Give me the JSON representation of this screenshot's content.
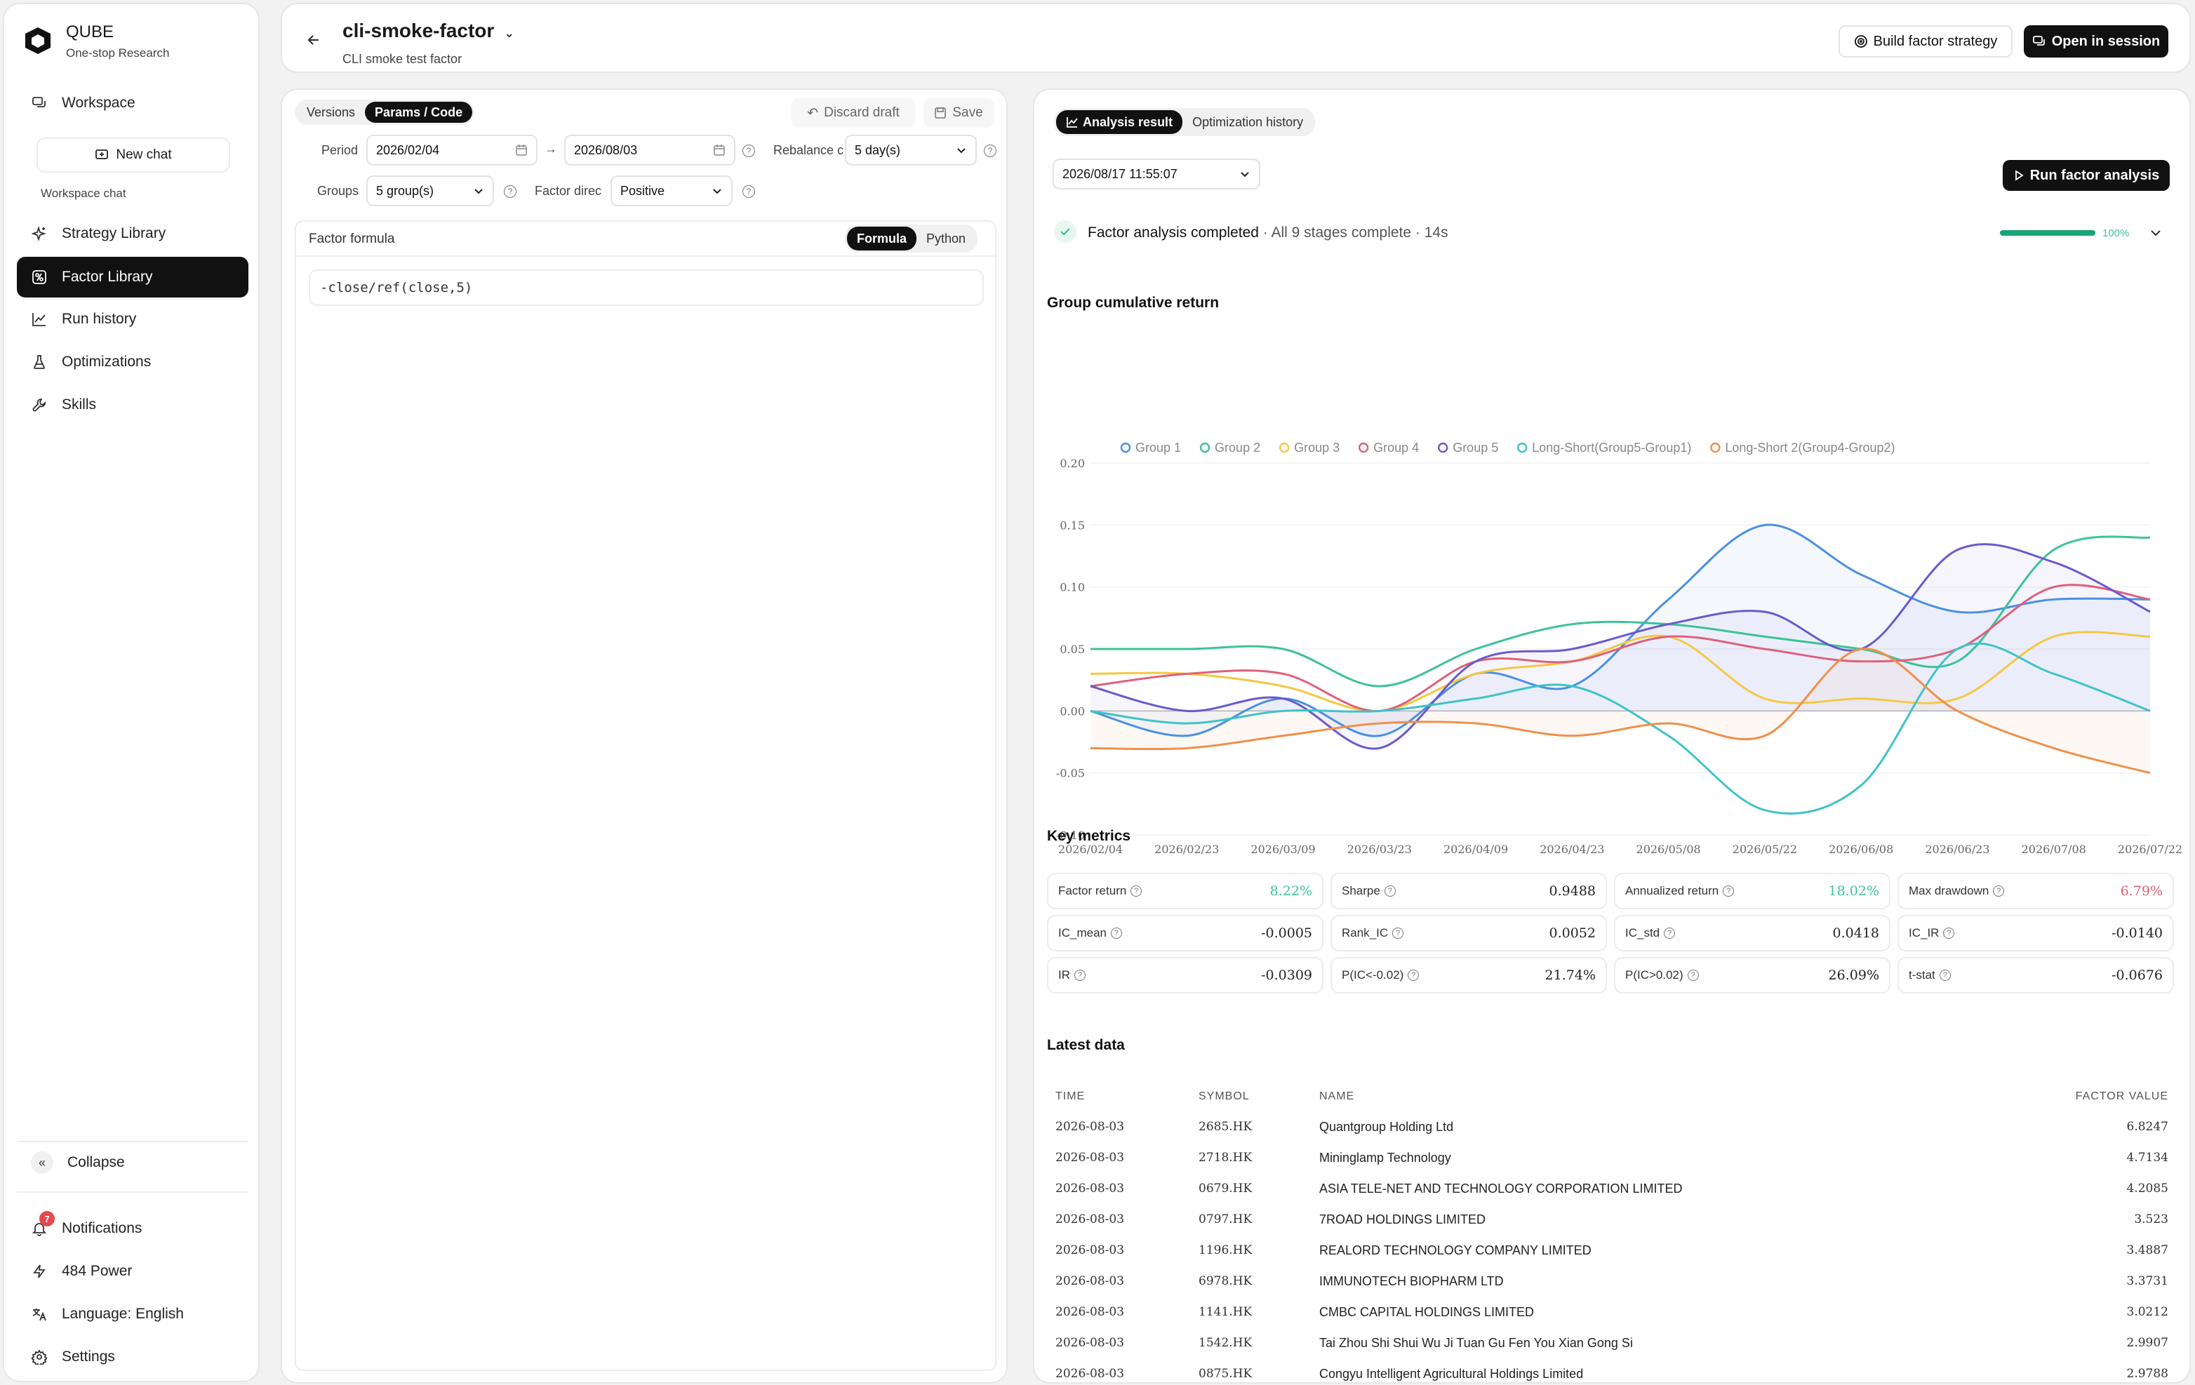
{
  "brand": {
    "name": "QUBE",
    "subtitle": "One-stop Research"
  },
  "sidebar": {
    "workspace": "Workspace",
    "new_chat": "New chat",
    "workspace_chat": "Workspace chat",
    "items": [
      {
        "label": "Strategy Library",
        "icon": "sparkle-icon"
      },
      {
        "label": "Factor Library",
        "icon": "factor-icon",
        "active": true
      },
      {
        "label": "Run history",
        "icon": "chart-line-icon"
      },
      {
        "label": "Optimizations",
        "icon": "flask-icon"
      },
      {
        "label": "Skills",
        "icon": "wrench-icon"
      }
    ],
    "collapse": "Collapse",
    "notifications": "Notifications",
    "notifications_count": "7",
    "power": "484 Power",
    "language": "Language: English",
    "settings": "Settings"
  },
  "header": {
    "title": "cli-smoke-factor",
    "subtitle": "CLI smoke test factor",
    "build_strategy": "Build factor strategy",
    "open_session": "Open in session"
  },
  "editor": {
    "tabs": [
      "Versions",
      "Params / Code"
    ],
    "active_tab": "Params / Code",
    "discard": "Discard draft",
    "save": "Save",
    "period_label": "Period",
    "period_start": "2026/02/04",
    "arrow": "→",
    "period_end": "2026/08/03",
    "rebalance_label": "Rebalance c",
    "rebalance_value": "5 day(s)",
    "groups_label": "Groups",
    "groups_value": "5 group(s)",
    "direction_label": "Factor direc",
    "direction_value": "Positive",
    "formula_title": "Factor formula",
    "formula_modes": [
      "Formula",
      "Python"
    ],
    "formula": "-close/ref(close,5)"
  },
  "analysis": {
    "tabs": [
      "Analysis result",
      "Optimization history"
    ],
    "run_time": "2026/08/17 11:55:07",
    "run_button": "Run factor analysis",
    "status_title": "Factor analysis completed",
    "status_detail": " · All 9 stages complete · 14s",
    "progress": 100,
    "progress_label": "100%",
    "chart_section": "Group cumulative return",
    "metrics_section": "Key metrics",
    "metrics": [
      {
        "name": "Factor return",
        "value": "8.22%",
        "color": "#3cc29a"
      },
      {
        "name": "Sharpe",
        "value": "0.9488",
        "color": "#222222"
      },
      {
        "name": "Annualized return",
        "value": "18.02%",
        "color": "#3cc29a"
      },
      {
        "name": "Max drawdown",
        "value": "6.79%",
        "color": "#e0607a"
      },
      {
        "name": "IC_mean",
        "value": "-0.0005",
        "color": "#222222"
      },
      {
        "name": "Rank_IC",
        "value": "0.0052",
        "color": "#222222"
      },
      {
        "name": "IC_std",
        "value": "0.0418",
        "color": "#222222"
      },
      {
        "name": "IC_IR",
        "value": "-0.0140",
        "color": "#222222"
      },
      {
        "name": "IR",
        "value": "-0.0309",
        "color": "#222222"
      },
      {
        "name": "P(IC<-0.02)",
        "value": "21.74%",
        "color": "#222222"
      },
      {
        "name": "P(IC>0.02)",
        "value": "26.09%",
        "color": "#222222"
      },
      {
        "name": "t-stat",
        "value": "-0.0676",
        "color": "#222222"
      }
    ],
    "latest_section": "Latest data",
    "table": {
      "headers": [
        "TIME",
        "SYMBOL",
        "NAME",
        "FACTOR VALUE"
      ],
      "rows": [
        [
          "2026-08-03",
          "2685.HK",
          "Quantgroup Holding Ltd",
          "6.8247"
        ],
        [
          "2026-08-03",
          "2718.HK",
          "Mininglamp Technology",
          "4.7134"
        ],
        [
          "2026-08-03",
          "0679.HK",
          "ASIA TELE-NET AND TECHNOLOGY CORPORATION LIMITED",
          "4.2085"
        ],
        [
          "2026-08-03",
          "0797.HK",
          "7ROAD HOLDINGS LIMITED",
          "3.523"
        ],
        [
          "2026-08-03",
          "1196.HK",
          "REALORD TECHNOLOGY COMPANY LIMITED",
          "3.4887"
        ],
        [
          "2026-08-03",
          "6978.HK",
          "IMMUNOTECH BIOPHARM LTD",
          "3.3731"
        ],
        [
          "2026-08-03",
          "1141.HK",
          "CMBC CAPITAL HOLDINGS LIMITED",
          "3.0212"
        ],
        [
          "2026-08-03",
          "1542.HK",
          "Tai Zhou Shi Shui Wu Ji Tuan Gu Fen You Xian Gong Si",
          "2.9907"
        ],
        [
          "2026-08-03",
          "0875.HK",
          "Congyu Intelligent Agricultural Holdings Limited",
          "2.9788"
        ]
      ]
    }
  },
  "chart_data": {
    "type": "line",
    "title": "",
    "xlabel": "",
    "ylabel": "",
    "x_ticks": [
      "2026/02/04",
      "2026/02/23",
      "2026/03/09",
      "2026/03/23",
      "2026/04/09",
      "2026/04/23",
      "2026/05/08",
      "2026/05/22",
      "2026/06/08",
      "2026/06/23",
      "2026/07/08",
      "2026/07/22"
    ],
    "y_ticks": [
      "0.20",
      "0.15",
      "0.10",
      "0.05",
      "0.00",
      "-0.05",
      "-0.10"
    ],
    "ylim": [
      -0.1,
      0.2
    ],
    "grid": true,
    "legend": "top",
    "series": [
      {
        "name": "Group 1",
        "color": "#4a90e2",
        "values": [
          0.0,
          -0.02,
          0.01,
          -0.02,
          0.03,
          0.02,
          0.09,
          0.15,
          0.11,
          0.08,
          0.09,
          0.09
        ]
      },
      {
        "name": "Group 2",
        "color": "#3cc29a",
        "values": [
          0.05,
          0.05,
          0.05,
          0.02,
          0.05,
          0.07,
          0.07,
          0.06,
          0.05,
          0.04,
          0.13,
          0.14
        ]
      },
      {
        "name": "Group 3",
        "color": "#f5c842",
        "values": [
          0.03,
          0.03,
          0.02,
          0.0,
          0.03,
          0.04,
          0.06,
          0.01,
          0.01,
          0.01,
          0.06,
          0.06
        ]
      },
      {
        "name": "Group 4",
        "color": "#e0607a",
        "values": [
          0.02,
          0.03,
          0.03,
          0.0,
          0.04,
          0.04,
          0.06,
          0.05,
          0.04,
          0.05,
          0.1,
          0.09
        ]
      },
      {
        "name": "Group 5",
        "color": "#6a5acd",
        "values": [
          0.02,
          0.0,
          0.01,
          -0.03,
          0.04,
          0.05,
          0.07,
          0.08,
          0.05,
          0.13,
          0.12,
          0.08
        ]
      },
      {
        "name": "Long-Short(Group5-Group1)",
        "color": "#3fc3c8",
        "values": [
          0.0,
          -0.01,
          0.0,
          0.0,
          0.01,
          0.02,
          -0.02,
          -0.08,
          -0.06,
          0.05,
          0.03,
          0.0
        ]
      },
      {
        "name": "Long-Short 2(Group4-Group2)",
        "color": "#f0904a",
        "values": [
          -0.03,
          -0.03,
          -0.02,
          -0.01,
          -0.01,
          -0.02,
          -0.01,
          -0.02,
          0.05,
          0.0,
          -0.03,
          -0.05
        ]
      }
    ]
  }
}
